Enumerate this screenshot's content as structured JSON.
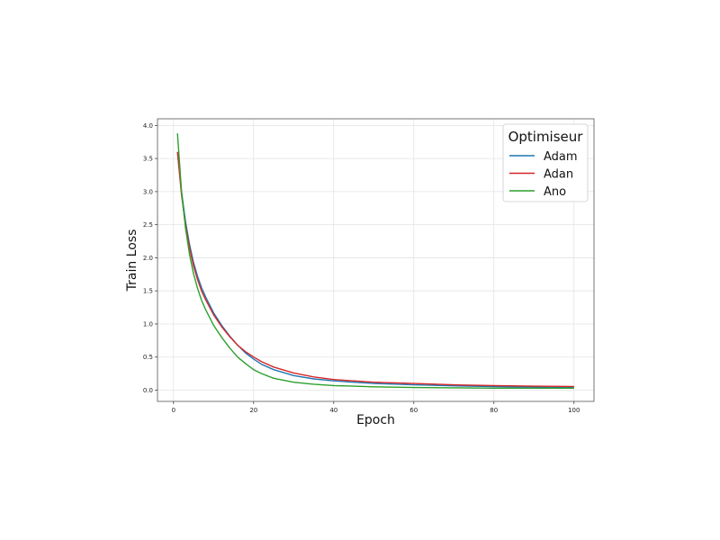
{
  "chart_data": {
    "type": "line",
    "xlabel": "Epoch",
    "ylabel": "Train Loss",
    "xlim": [
      -4,
      105
    ],
    "ylim": [
      -0.17,
      4.1
    ],
    "xticks": [
      0,
      20,
      40,
      60,
      80,
      100
    ],
    "yticks": [
      0.0,
      0.5,
      1.0,
      1.5,
      2.0,
      2.5,
      3.0,
      3.5,
      4.0
    ],
    "grid": true,
    "legend": {
      "title": "Optimiseur",
      "placement": "top-right"
    },
    "x": [
      1,
      2,
      3,
      4,
      5,
      6,
      7,
      8,
      10,
      12,
      14,
      16,
      18,
      20,
      22,
      25,
      30,
      35,
      40,
      45,
      50,
      60,
      70,
      80,
      90,
      100
    ],
    "series": [
      {
        "name": "Adam",
        "color": "#1f77b4",
        "values": [
          3.6,
          3.0,
          2.55,
          2.2,
          1.93,
          1.72,
          1.55,
          1.41,
          1.17,
          0.98,
          0.82,
          0.68,
          0.56,
          0.47,
          0.39,
          0.31,
          0.22,
          0.17,
          0.14,
          0.12,
          0.1,
          0.08,
          0.065,
          0.055,
          0.045,
          0.04
        ]
      },
      {
        "name": "Adan",
        "color": "#d62728",
        "values": [
          3.6,
          2.95,
          2.5,
          2.15,
          1.88,
          1.67,
          1.5,
          1.37,
          1.14,
          0.96,
          0.81,
          0.68,
          0.58,
          0.5,
          0.43,
          0.35,
          0.26,
          0.2,
          0.16,
          0.14,
          0.12,
          0.1,
          0.08,
          0.07,
          0.06,
          0.055
        ]
      },
      {
        "name": "Ano",
        "color": "#2ca02c",
        "values": [
          3.88,
          3.0,
          2.45,
          2.05,
          1.76,
          1.54,
          1.36,
          1.22,
          0.98,
          0.8,
          0.64,
          0.5,
          0.4,
          0.31,
          0.25,
          0.18,
          0.12,
          0.09,
          0.07,
          0.06,
          0.05,
          0.04,
          0.035,
          0.03,
          0.03,
          0.03
        ]
      }
    ]
  }
}
